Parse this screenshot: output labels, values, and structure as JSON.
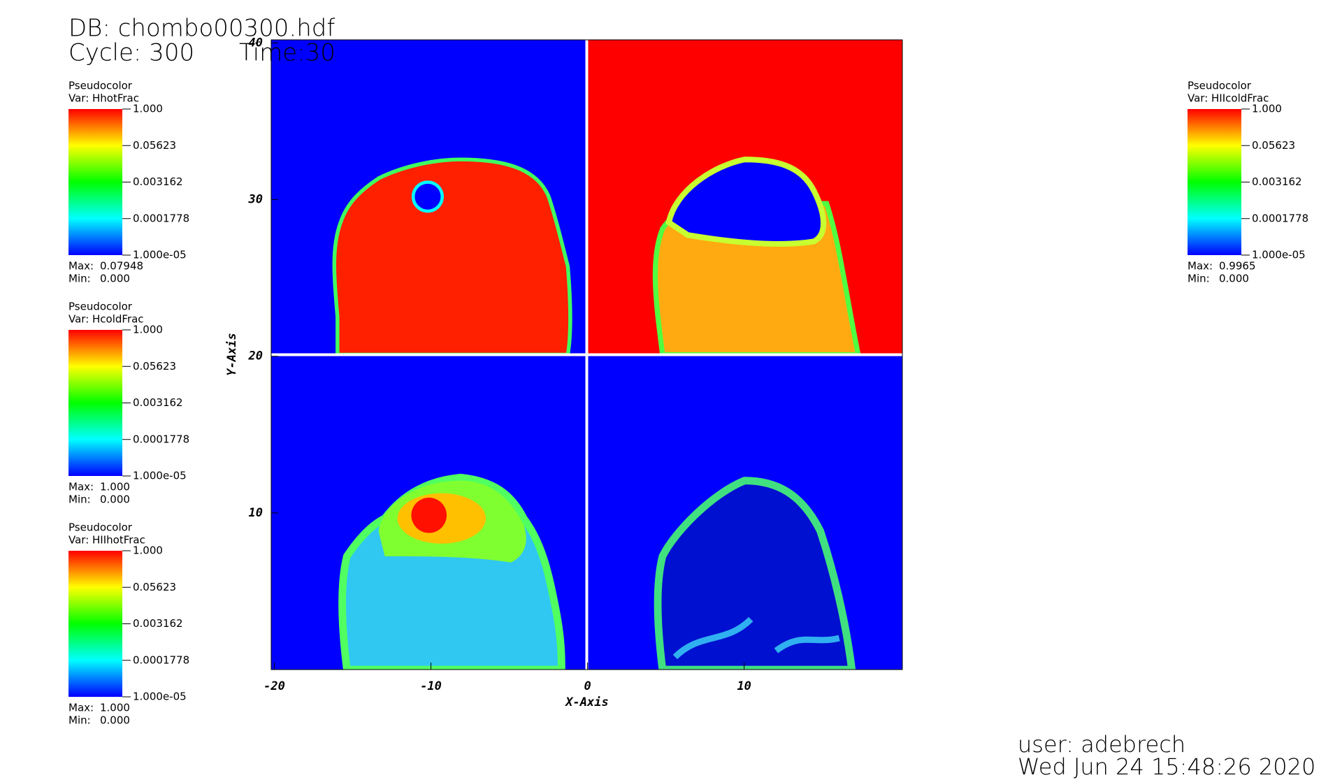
{
  "chart_data": {
    "type": "pseudocolor",
    "title": "DB: chombo00300.hdf",
    "cycle": "Cycle: 300",
    "time": "Time:30",
    "x_label": "X-Axis",
    "y_label": "Y-Axis",
    "xlim": [
      -20.2,
      20.1
    ],
    "ylim": [
      0,
      40.2
    ],
    "xticks": [
      -20,
      -10,
      0,
      10
    ],
    "yticks": [
      10,
      20,
      30,
      40
    ],
    "legends": [
      {
        "side": "left",
        "title": "Pseudocolor",
        "var": "Var: HhotFrac",
        "log": true,
        "ticks": [
          {
            "value": 1,
            "label": "1.000"
          },
          0.05623,
          0.003162,
          0.0001778,
          {
            "value": 1e-05,
            "label": "1.000e-05"
          }
        ],
        "max_text": "Max:",
        "max": 0.07948,
        "min_text": "Min:",
        "min": {
          "value": 0,
          "label": "0.000"
        }
      },
      {
        "side": "left",
        "title": "Pseudocolor",
        "var": "Var: HcoldFrac",
        "log": true,
        "ticks": [
          {
            "value": 1,
            "label": "1.000"
          },
          0.05623,
          0.003162,
          0.0001778,
          {
            "value": 1e-05,
            "label": "1.000e-05"
          }
        ],
        "max_text": "Max:",
        "max": {
          "value": 1,
          "label": "1.000"
        },
        "min_text": "Min:",
        "min": {
          "value": 0,
          "label": "0.000"
        }
      },
      {
        "side": "left",
        "title": "Pseudocolor",
        "var": "Var: HIIhotFrac",
        "log": true,
        "ticks": [
          {
            "value": 1,
            "label": "1.000"
          },
          0.05623,
          0.003162,
          0.0001778,
          {
            "value": 1e-05,
            "label": "1.000e-05"
          }
        ],
        "max_text": "Max:",
        "max": {
          "value": 1,
          "label": "1.000"
        },
        "min_text": "Min:",
        "min": {
          "value": 0,
          "label": "0.000"
        }
      },
      {
        "side": "right",
        "title": "Pseudocolor",
        "var": "Var: HIIcoldFrac",
        "log": true,
        "ticks": [
          {
            "value": 1,
            "label": "1.000"
          },
          0.05623,
          0.003162,
          0.0001778,
          {
            "value": 1e-05,
            "label": "1.000e-05"
          }
        ],
        "max_text": "Max:",
        "max": 0.9965,
        "min_text": "Min:",
        "min": {
          "value": 0,
          "label": "0.000"
        }
      }
    ],
    "user": "user: adebrech",
    "date": "Wed Jun 24 15:48:26 2020"
  }
}
